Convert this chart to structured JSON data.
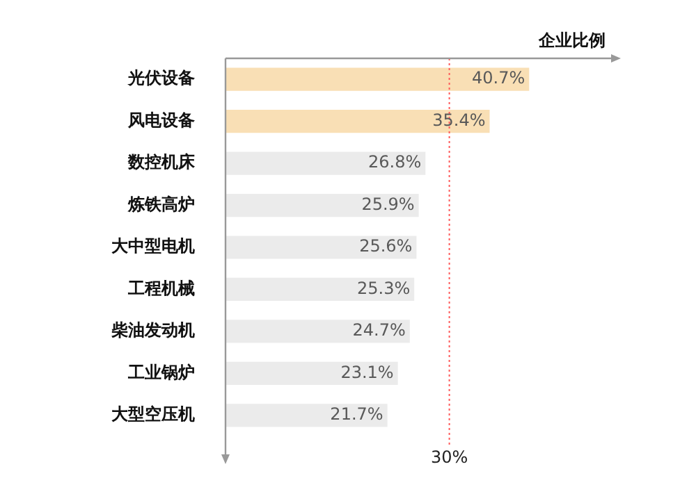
{
  "chart_data": {
    "type": "bar",
    "orientation": "horizontal",
    "xlabel": "企业比例",
    "categories": [
      "光伏设备",
      "风电设备",
      "数控机床",
      "炼铁高炉",
      "大中型电机",
      "工程机械",
      "柴油发动机",
      "工业锅炉",
      "大型空压机"
    ],
    "values": [
      40.7,
      35.4,
      26.8,
      25.9,
      25.6,
      25.3,
      24.7,
      23.1,
      21.7
    ],
    "colors": [
      "#f9dfb5",
      "#f9dfb5",
      "#ebebeb",
      "#ebebeb",
      "#ebebeb",
      "#ebebeb",
      "#ebebeb",
      "#ebebeb",
      "#ebebeb"
    ],
    "value_labels": [
      "40.7%",
      "35.4%",
      "26.8%",
      "25.9%",
      "25.6%",
      "25.3%",
      "24.7%",
      "23.1%",
      "21.7%"
    ],
    "ref_lines": [
      {
        "axis": "x",
        "value": 30,
        "label": "30%",
        "color": "#ff5a5a",
        "line_style": "dotted"
      }
    ],
    "legend": false
  }
}
